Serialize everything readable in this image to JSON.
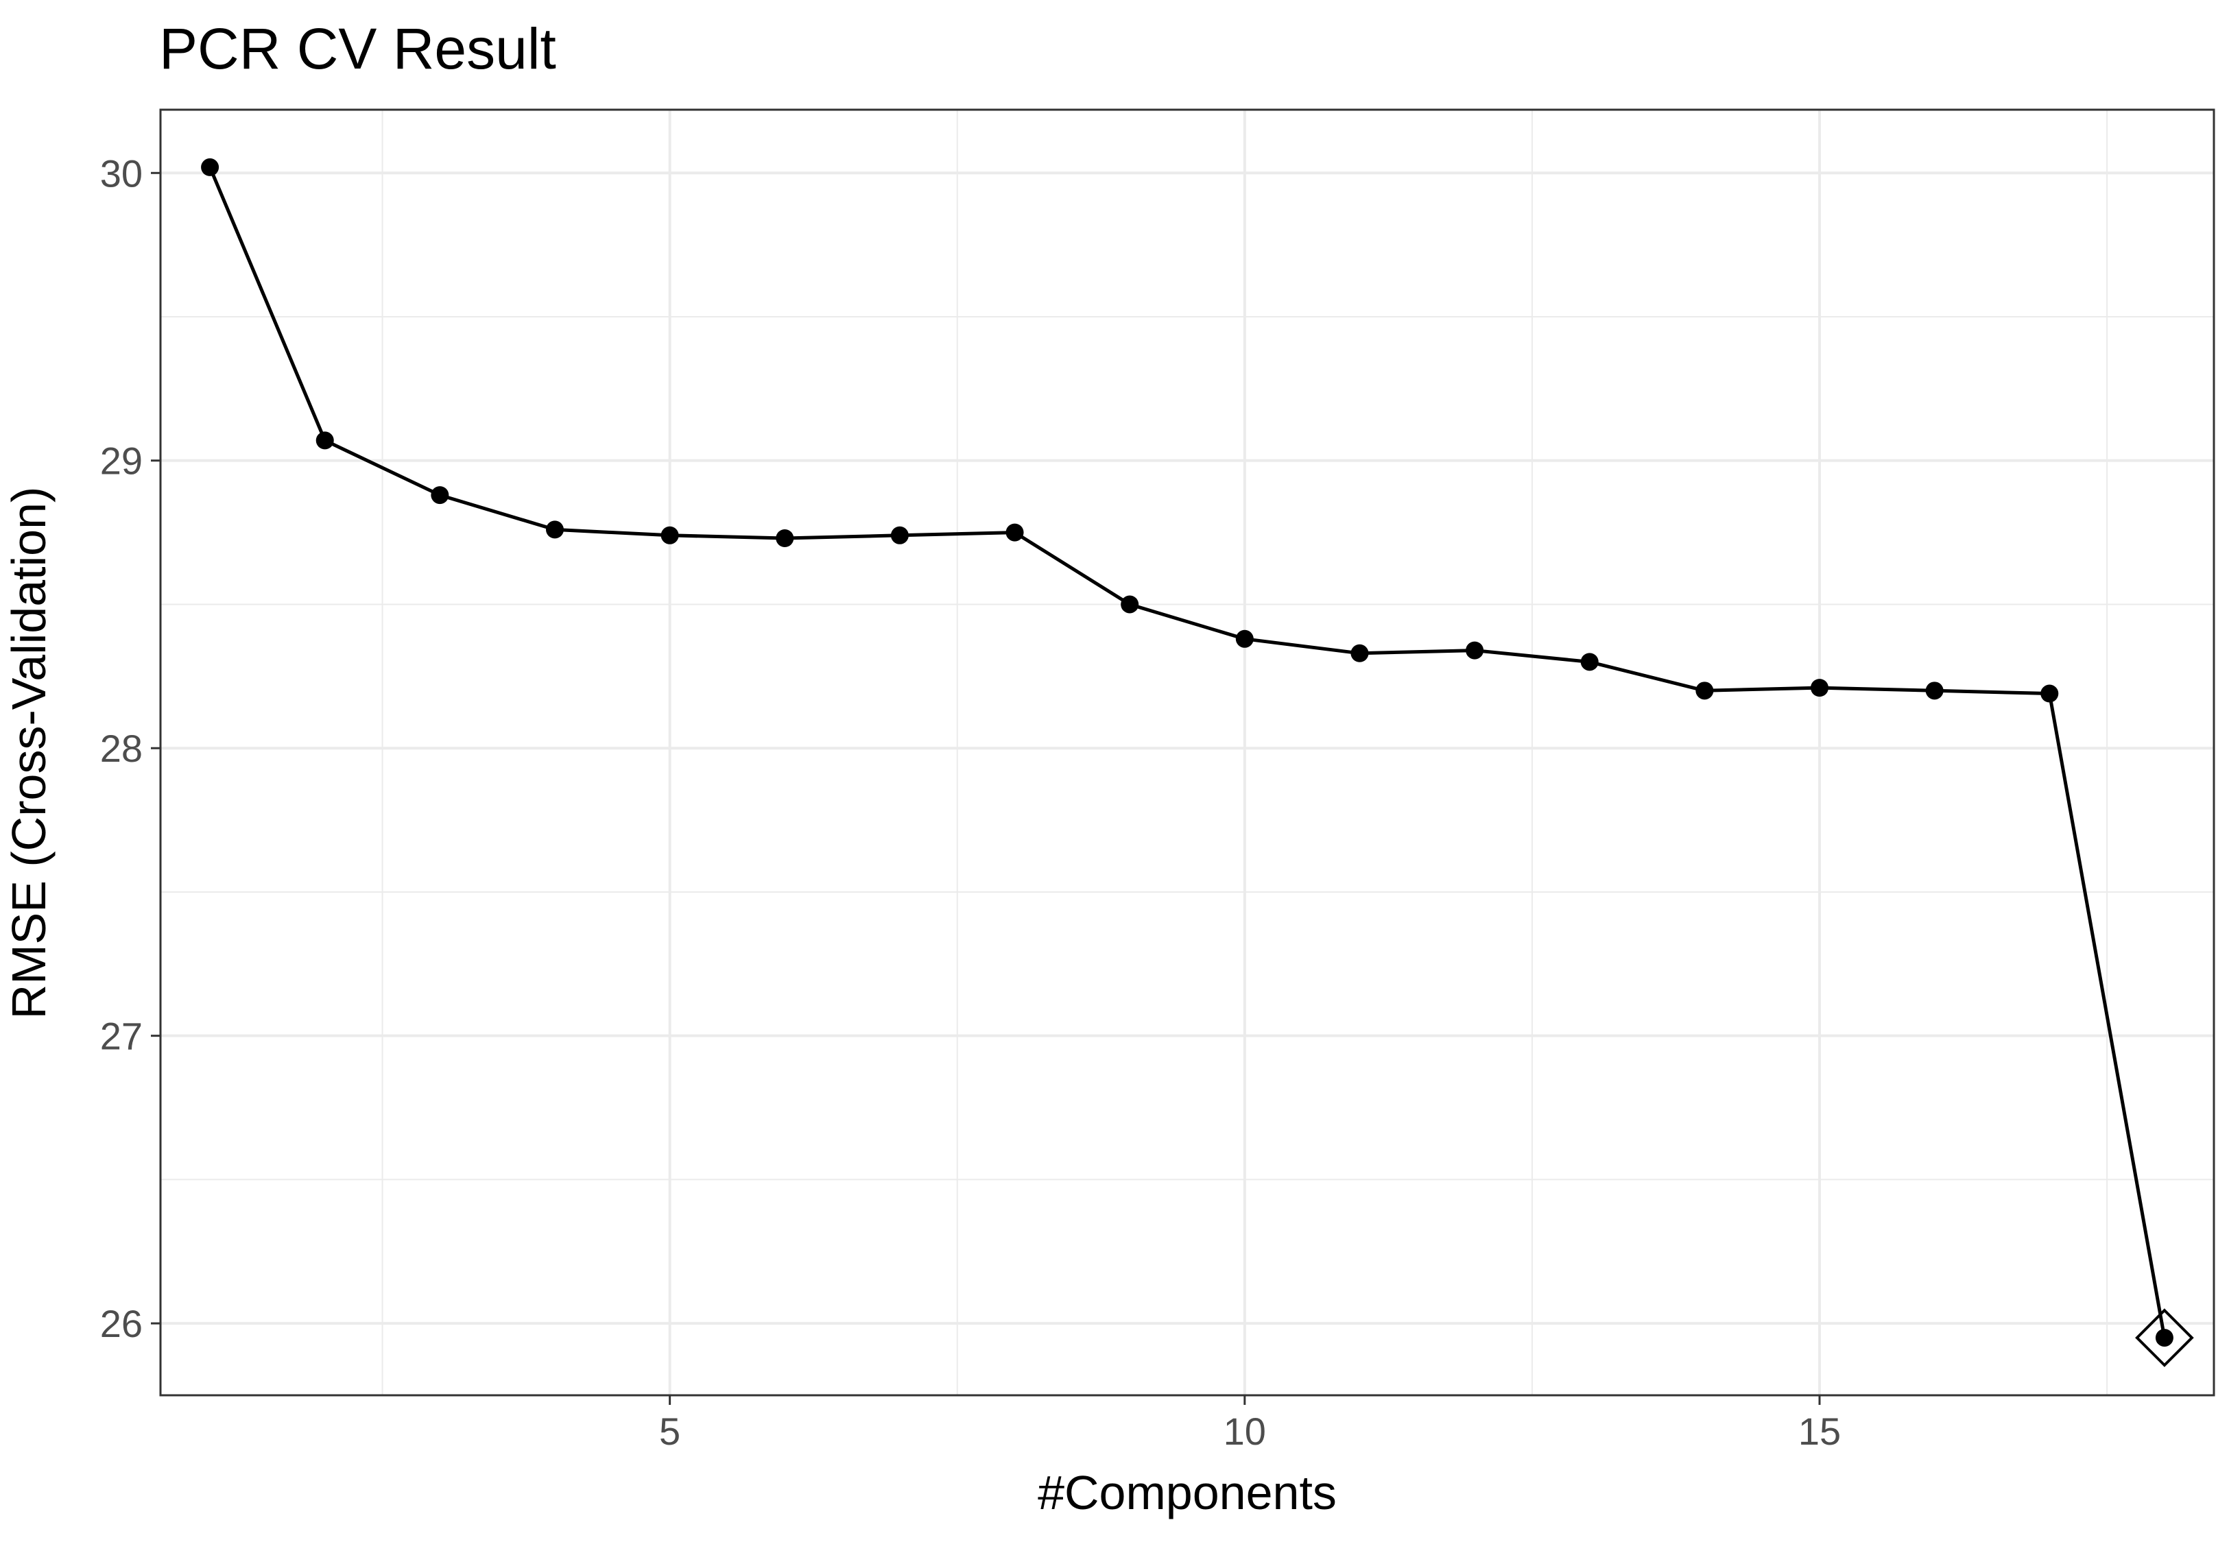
{
  "chart_data": {
    "type": "line",
    "title": "PCR CV Result",
    "xlabel": "#Components",
    "ylabel": "RMSE (Cross-Validation)",
    "xlim": [
      0.57,
      18.43
    ],
    "ylim": [
      25.75,
      30.22
    ],
    "x_ticks": [
      5,
      10,
      15
    ],
    "x_tick_labels": [
      "5",
      "10",
      "15"
    ],
    "x_minor_ticks": [
      2.5,
      7.5,
      12.5,
      17.5
    ],
    "y_ticks": [
      26,
      27,
      28,
      29,
      30
    ],
    "y_tick_labels": [
      "26",
      "27",
      "28",
      "29",
      "30"
    ],
    "y_minor_ticks": [
      26.5,
      27.5,
      28.5,
      29.5
    ],
    "grid": true,
    "legend": "none",
    "series": [
      {
        "x": [
          1,
          2,
          3,
          4,
          5,
          6,
          7,
          8,
          9,
          10,
          11,
          12,
          13,
          14,
          15,
          16,
          17,
          18
        ],
        "y": [
          30.02,
          29.07,
          28.88,
          28.76,
          28.74,
          28.73,
          28.74,
          28.75,
          28.5,
          28.38,
          28.33,
          28.34,
          28.3,
          28.2,
          28.21,
          28.2,
          28.19,
          25.95
        ],
        "color": "#000000"
      }
    ],
    "highlight": {
      "x": 18,
      "y": 25.95,
      "marker": "diamond-open"
    }
  }
}
